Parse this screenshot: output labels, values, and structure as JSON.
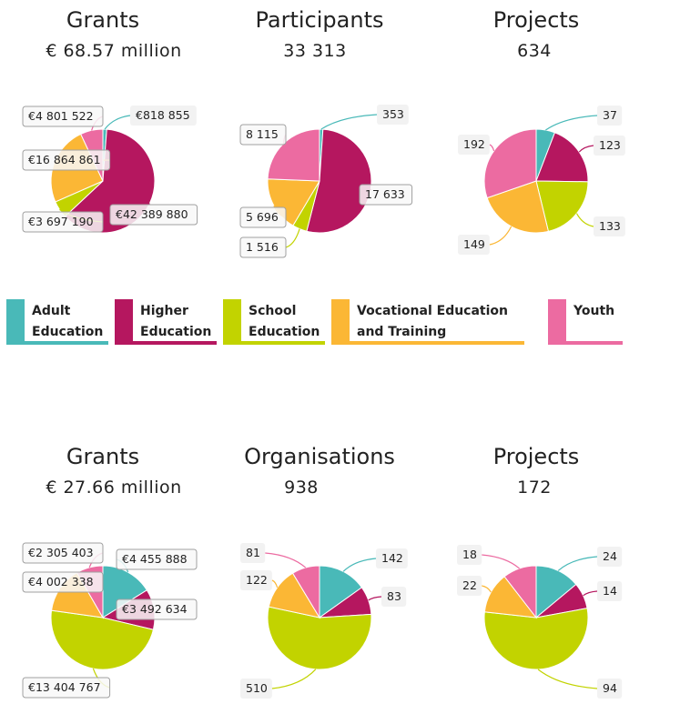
{
  "colors": {
    "adult": "#49b9b8",
    "higher": "#b5175f",
    "school": "#c2d300",
    "vocational": "#fbb735",
    "youth": "#ec6ba1"
  },
  "legend": [
    {
      "key": "adult",
      "label": "Adult\nEducation"
    },
    {
      "key": "higher",
      "label": "Higher\nEducation"
    },
    {
      "key": "school",
      "label": "School\nEducation"
    },
    {
      "key": "vocational",
      "label": "Vocational Education\nand Training"
    },
    {
      "key": "youth",
      "label": "Youth"
    }
  ],
  "chart_data": [
    {
      "type": "pie",
      "title": "Grants",
      "total": "€ 68.57 million",
      "slices": [
        {
          "key": "adult",
          "value": 818855,
          "label": "€818 855"
        },
        {
          "key": "higher",
          "value": 42389880,
          "label": "€42 389 880"
        },
        {
          "key": "school",
          "value": 3697190,
          "label": "€3 697 190"
        },
        {
          "key": "vocational",
          "value": 16864861,
          "label": "€16 864 861"
        },
        {
          "key": "youth",
          "value": 4801522,
          "label": "€4 801 522"
        }
      ]
    },
    {
      "type": "pie",
      "title": "Participants",
      "total": "33 313",
      "slices": [
        {
          "key": "adult",
          "value": 353,
          "label": "353"
        },
        {
          "key": "higher",
          "value": 17633,
          "label": "17 633"
        },
        {
          "key": "school",
          "value": 1516,
          "label": "1 516"
        },
        {
          "key": "vocational",
          "value": 5696,
          "label": "5 696"
        },
        {
          "key": "youth",
          "value": 8115,
          "label": "8 115"
        }
      ]
    },
    {
      "type": "pie",
      "title": "Projects",
      "total": "634",
      "slices": [
        {
          "key": "adult",
          "value": 37,
          "label": "37"
        },
        {
          "key": "higher",
          "value": 123,
          "label": "123"
        },
        {
          "key": "school",
          "value": 133,
          "label": "133"
        },
        {
          "key": "vocational",
          "value": 149,
          "label": "149"
        },
        {
          "key": "youth",
          "value": 192,
          "label": "192"
        }
      ]
    },
    {
      "type": "pie",
      "title": "Grants",
      "total": "€ 27.66 million",
      "slices": [
        {
          "key": "adult",
          "value": 4455888,
          "label": "€4 455 888"
        },
        {
          "key": "higher",
          "value": 3492634,
          "label": "€3 492 634"
        },
        {
          "key": "school",
          "value": 13404767,
          "label": "€13 404 767"
        },
        {
          "key": "vocational",
          "value": 4002338,
          "label": "€4 002 338"
        },
        {
          "key": "youth",
          "value": 2305403,
          "label": "€2 305 403"
        }
      ]
    },
    {
      "type": "pie",
      "title": "Organisations",
      "total": "938",
      "slices": [
        {
          "key": "adult",
          "value": 142,
          "label": "142"
        },
        {
          "key": "higher",
          "value": 83,
          "label": "83"
        },
        {
          "key": "school",
          "value": 510,
          "label": "510"
        },
        {
          "key": "vocational",
          "value": 122,
          "label": "122"
        },
        {
          "key": "youth",
          "value": 81,
          "label": "81"
        }
      ]
    },
    {
      "type": "pie",
      "title": "Projects",
      "total": "172",
      "slices": [
        {
          "key": "adult",
          "value": 24,
          "label": "24"
        },
        {
          "key": "higher",
          "value": 14,
          "label": "14"
        },
        {
          "key": "school",
          "value": 94,
          "label": "94"
        },
        {
          "key": "vocational",
          "value": 22,
          "label": "22"
        },
        {
          "key": "youth",
          "value": 18,
          "label": "18"
        }
      ]
    }
  ]
}
